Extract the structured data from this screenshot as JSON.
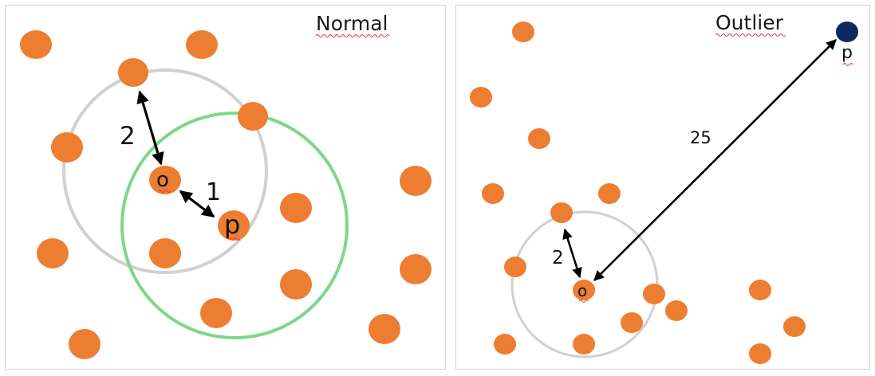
{
  "panels": [
    {
      "title": "Normal",
      "point_p_label": "p",
      "point_o_label": "o",
      "distance_o_p": "1",
      "distance_o_neighbor": "2"
    },
    {
      "title": "Outlier",
      "point_p_label": "p",
      "point_o_label": "o",
      "distance_o_p": "25",
      "distance_o_neighbor": "2"
    }
  ],
  "colors": {
    "point": "#ed7d31",
    "outlier_point": "#0d2a5c",
    "neighborhood_circle": "#d0d0d0",
    "p_neighborhood_circle": "#7fd68a",
    "arrow": "#000000"
  }
}
